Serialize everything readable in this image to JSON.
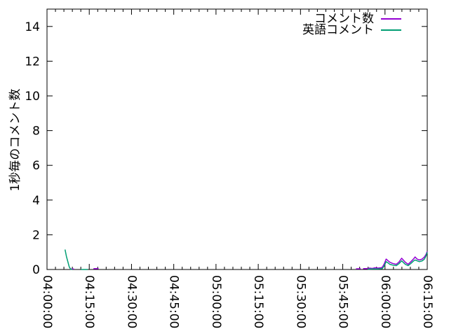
{
  "chart_data": {
    "type": "line",
    "title": "",
    "xlabel": "",
    "ylabel": "1秒毎のコメント数",
    "background": "#ffffff",
    "frame_color": "#000000",
    "grid": false,
    "legend_position": "top-right-inside",
    "x_axis": {
      "kind": "time",
      "range_minutes": [
        0,
        135
      ],
      "major_tick_minutes": [
        0,
        15,
        30,
        45,
        60,
        75,
        90,
        105,
        120,
        135
      ],
      "tick_labels": [
        "04:00:00",
        "04:15:00",
        "04:30:00",
        "04:45:00",
        "05:00:00",
        "05:15:00",
        "05:30:00",
        "05:45:00",
        "06:00:00",
        "06:15:00"
      ],
      "minor_tick_step_minutes": 3,
      "tick_label_rotation_deg": 90
    },
    "y_axis": {
      "range": [
        0,
        15
      ],
      "major_ticks": [
        0,
        2,
        4,
        6,
        8,
        10,
        12,
        14
      ],
      "tick_labels": [
        "0",
        "2",
        "4",
        "6",
        "8",
        "10",
        "12",
        "14"
      ]
    },
    "series": [
      {
        "name": "コメント数",
        "color": "#9400d3",
        "segments": [
          [
            [
              8.5,
              0.03
            ],
            [
              9.6,
              0.03
            ]
          ],
          [
            [
              16.5,
              0.05
            ],
            [
              18.3,
              0.05
            ]
          ],
          [
            [
              109.7,
              0.04
            ],
            [
              111.4,
              0.04
            ]
          ],
          [
            [
              112.2,
              0.05
            ],
            [
              113.5,
              0.05
            ],
            [
              114.5,
              0.08
            ],
            [
              115.5,
              0.06
            ],
            [
              116.5,
              0.1
            ],
            [
              117.5,
              0.08
            ],
            [
              118.5,
              0.1
            ],
            [
              119.0,
              0.12
            ],
            [
              119.7,
              0.32
            ],
            [
              120.4,
              0.6
            ],
            [
              121.1,
              0.5
            ],
            [
              121.7,
              0.42
            ],
            [
              122.7,
              0.35
            ],
            [
              124.0,
              0.3
            ],
            [
              124.9,
              0.42
            ],
            [
              125.9,
              0.65
            ],
            [
              127.2,
              0.42
            ],
            [
              128.2,
              0.3
            ],
            [
              129.2,
              0.45
            ],
            [
              130.2,
              0.62
            ],
            [
              130.7,
              0.72
            ],
            [
              131.4,
              0.6
            ],
            [
              132.2,
              0.55
            ],
            [
              133.2,
              0.6
            ],
            [
              134.0,
              0.72
            ],
            [
              134.6,
              0.88
            ],
            [
              135.0,
              1.05
            ]
          ]
        ]
      },
      {
        "name": "英語コメント",
        "color": "#009e73",
        "segments": [
          [
            [
              6.4,
              1.15
            ],
            [
              6.9,
              0.75
            ],
            [
              7.4,
              0.45
            ],
            [
              7.9,
              0.15
            ],
            [
              8.4,
              0.02
            ],
            [
              9.0,
              0.0
            ]
          ],
          [
            [
              12.0,
              0.0
            ],
            [
              14.5,
              0.0
            ]
          ],
          [
            [
              113.9,
              0.02
            ],
            [
              115.5,
              0.03
            ],
            [
              117.5,
              0.03
            ],
            [
              119.0,
              0.05
            ],
            [
              119.7,
              0.2
            ],
            [
              120.4,
              0.45
            ],
            [
              121.1,
              0.38
            ],
            [
              121.7,
              0.3
            ],
            [
              122.7,
              0.26
            ],
            [
              124.0,
              0.22
            ],
            [
              124.9,
              0.33
            ],
            [
              125.9,
              0.5
            ],
            [
              127.2,
              0.3
            ],
            [
              128.2,
              0.22
            ],
            [
              129.2,
              0.35
            ],
            [
              130.2,
              0.5
            ],
            [
              130.7,
              0.55
            ],
            [
              131.4,
              0.5
            ],
            [
              132.2,
              0.45
            ],
            [
              133.2,
              0.5
            ],
            [
              134.0,
              0.6
            ],
            [
              134.6,
              0.8
            ],
            [
              135.0,
              1.0
            ]
          ]
        ]
      }
    ]
  }
}
